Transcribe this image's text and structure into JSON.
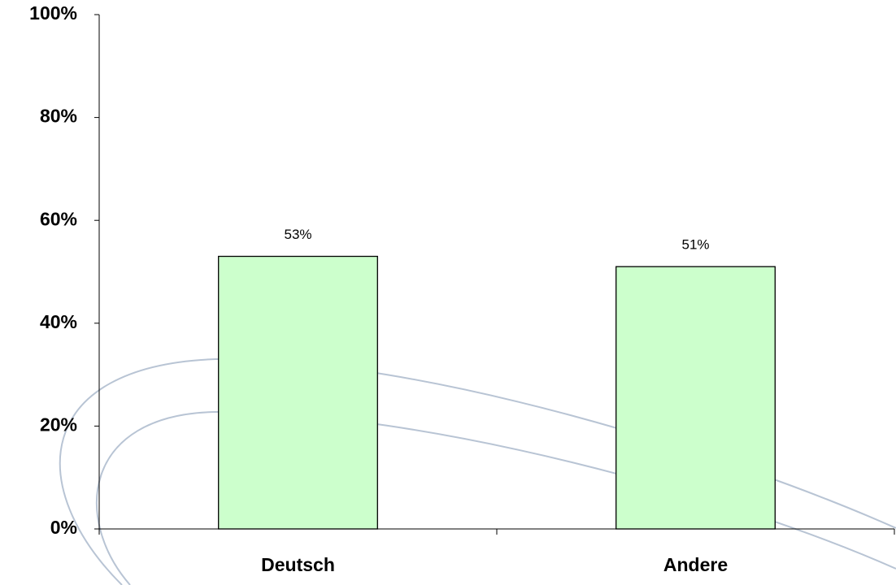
{
  "chart_data": {
    "type": "bar",
    "categories": [
      "Deutsch",
      "Andere"
    ],
    "values": [
      53,
      51
    ],
    "value_labels": [
      "53%",
      "51%"
    ],
    "color": "#ccffcc",
    "ylim": [
      0,
      100
    ],
    "yticks": [
      {
        "value": 0,
        "label": "0%"
      },
      {
        "value": 20,
        "label": "20%"
      },
      {
        "value": 40,
        "label": "40%"
      },
      {
        "value": 60,
        "label": "60%"
      },
      {
        "value": 80,
        "label": "80%"
      },
      {
        "value": 100,
        "label": "100%"
      }
    ]
  }
}
